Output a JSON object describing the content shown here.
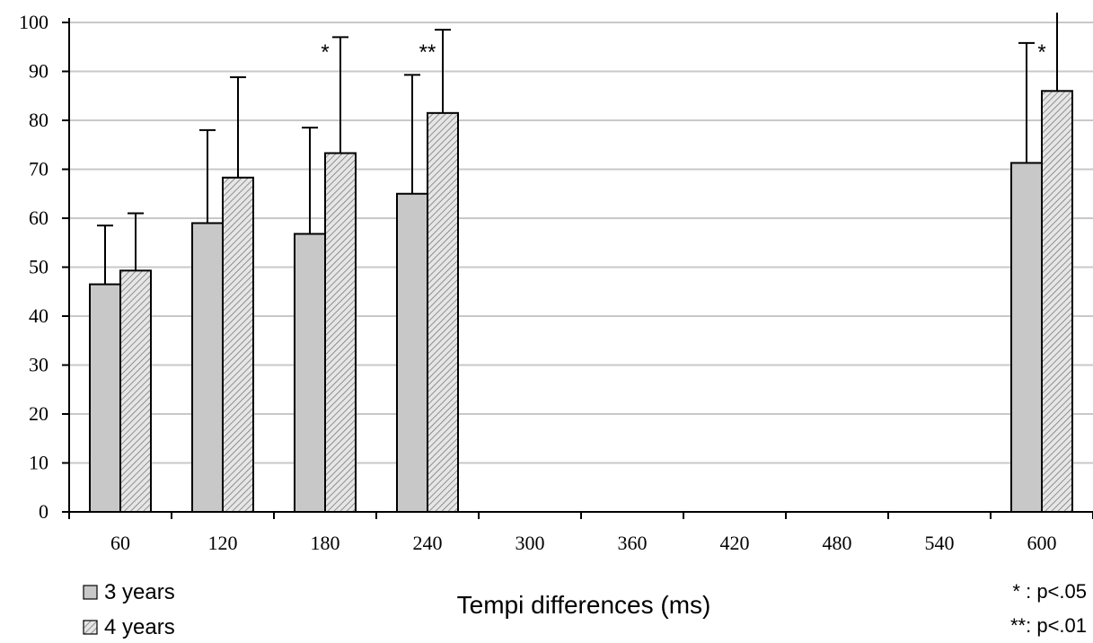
{
  "chart_data": {
    "type": "bar",
    "title": "",
    "xlabel": "Tempi differences (ms)",
    "ylabel": "",
    "ylim": [
      0,
      100
    ],
    "yticks": [
      0,
      10,
      20,
      30,
      40,
      50,
      60,
      70,
      80,
      90,
      100
    ],
    "categories": [
      "60",
      "120",
      "180",
      "240",
      "300",
      "360",
      "420",
      "480",
      "540",
      "600"
    ],
    "series": [
      {
        "name": "3 years",
        "color": "#c8c8c8",
        "pattern": "solid",
        "values": [
          46.5,
          59,
          56.8,
          65,
          null,
          null,
          null,
          null,
          null,
          71.3
        ],
        "error": [
          12,
          19,
          21.7,
          24.3,
          null,
          null,
          null,
          null,
          null,
          24.5
        ]
      },
      {
        "name": "4 years",
        "color": "#d8d8d8",
        "pattern": "hatched",
        "values": [
          49.3,
          68.3,
          73.3,
          81.5,
          null,
          null,
          null,
          null,
          null,
          86
        ],
        "error": [
          11.7,
          20.5,
          23.7,
          17,
          null,
          null,
          null,
          null,
          null,
          16
        ]
      }
    ],
    "significance": [
      {
        "category": "180",
        "marker": "*"
      },
      {
        "category": "240",
        "marker": "**"
      },
      {
        "category": "600",
        "marker": "*"
      }
    ],
    "grid": true,
    "legend_position": "bottom-left",
    "notes": [
      "* : p<.05",
      "**: p<.01"
    ]
  }
}
